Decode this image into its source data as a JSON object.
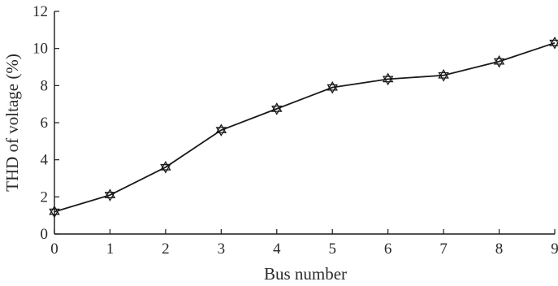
{
  "chart_data": {
    "type": "line",
    "xlabel": "Bus number",
    "ylabel": "THD of voltage (%)",
    "x": [
      0,
      1,
      2,
      3,
      4,
      5,
      6,
      7,
      8,
      9
    ],
    "series": [
      {
        "values": [
          1.2,
          2.1,
          3.6,
          5.6,
          6.75,
          7.9,
          8.35,
          8.55,
          9.3,
          10.3
        ]
      }
    ],
    "xlim": [
      0,
      9
    ],
    "ylim": [
      0,
      12
    ],
    "xticks": [
      "0",
      "1",
      "2",
      "3",
      "4",
      "5",
      "6",
      "7",
      "8",
      "9"
    ],
    "yticks": [
      "0",
      "2",
      "4",
      "6",
      "8",
      "10",
      "12"
    ],
    "marker": "hexagram",
    "grid": false,
    "line_color": "#1a1a1a"
  }
}
